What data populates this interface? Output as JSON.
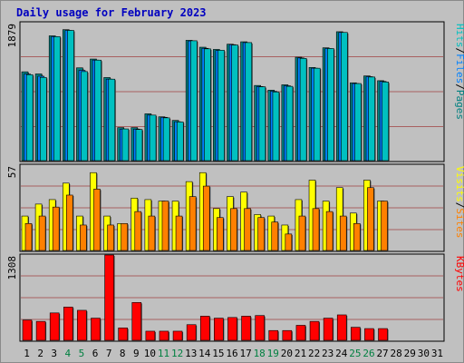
{
  "title": "Daily usage for February 2023",
  "colors": {
    "pages": "#008080",
    "files": "#0080ff",
    "hits": "#00c0c0",
    "visits": "#ffff00",
    "sites": "#ff8000",
    "kbytes": "#ff0000",
    "weekend_day": "#008040",
    "weekday": "#000000",
    "panel_bg": "#c0c0c0"
  },
  "chart_data": [
    {
      "type": "bar",
      "panel": "top",
      "ymax_label": "1879",
      "ylim": [
        0,
        1879
      ],
      "grid": true,
      "legend_labels": [
        "Pages",
        "Files",
        "Hits"
      ],
      "legend_separators": [
        "/",
        "/"
      ],
      "categories": [
        "1",
        "2",
        "3",
        "4",
        "5",
        "6",
        "7",
        "8",
        "9",
        "10",
        "11",
        "12",
        "13",
        "14",
        "15",
        "16",
        "17",
        "18",
        "19",
        "20",
        "21",
        "22",
        "23",
        "24",
        "25",
        "26",
        "27",
        "28",
        "29",
        "30",
        "31"
      ],
      "series": [
        {
          "name": "Pages",
          "values": [
            1210,
            1181,
            1700,
            1784,
            1264,
            1384,
            1132,
            450,
            450,
            638,
            597,
            548,
            1639,
            1545,
            1515,
            1586,
            1619,
            1024,
            960,
            1033,
            1409,
            1269,
            1537,
            1756,
            1060,
            1154,
            1089,
            0,
            0,
            0,
            0
          ]
        },
        {
          "name": "Files",
          "values": [
            1180,
            1150,
            1690,
            1774,
            1230,
            1370,
            1110,
            430,
            430,
            620,
            590,
            530,
            1630,
            1530,
            1500,
            1580,
            1608,
            1010,
            945,
            1020,
            1399,
            1259,
            1527,
            1746,
            1050,
            1144,
            1079,
            0,
            0,
            0,
            0
          ]
        },
        {
          "name": "Hits",
          "values": [
            1171,
            1134,
            1689,
            1774,
            1213,
            1369,
            1110,
            432,
            425,
            620,
            583,
            527,
            1633,
            1523,
            1503,
            1575,
            1608,
            1006,
            936,
            1012,
            1393,
            1259,
            1527,
            1746,
            1050,
            1139,
            1071,
            0,
            0,
            0,
            0
          ]
        }
      ]
    },
    {
      "type": "bar",
      "panel": "middle",
      "ymax_label": "57",
      "ylim": [
        0,
        57
      ],
      "grid": true,
      "legend_labels": [
        "Sites",
        "Visits"
      ],
      "legend_separators": [
        "/"
      ],
      "categories": [
        "1",
        "2",
        "3",
        "4",
        "5",
        "6",
        "7",
        "8",
        "9",
        "10",
        "11",
        "12",
        "13",
        "14",
        "15",
        "16",
        "17",
        "18",
        "19",
        "20",
        "21",
        "22",
        "23",
        "24",
        "25",
        "26",
        "27",
        "28",
        "29",
        "30",
        "31"
      ],
      "series": [
        {
          "name": "Visits",
          "values": [
            23,
            31,
            34,
            45,
            23,
            52,
            23,
            18,
            35,
            34,
            33,
            33,
            46,
            52,
            28,
            36,
            39,
            24,
            23,
            17,
            34,
            47,
            33,
            42,
            25,
            47,
            33,
            0,
            0,
            0,
            0
          ]
        },
        {
          "name": "Sites",
          "values": [
            18,
            23,
            29,
            37,
            17,
            41,
            17,
            18,
            26,
            23,
            33,
            23,
            36,
            43,
            22,
            28,
            28,
            22,
            19,
            11,
            23,
            28,
            26,
            23,
            18,
            42,
            33,
            0,
            0,
            0,
            0
          ]
        }
      ]
    },
    {
      "type": "bar",
      "panel": "bottom",
      "ymax_label": "1308",
      "ylim": [
        0,
        1308
      ],
      "grid": true,
      "legend_labels": [
        "KBytes"
      ],
      "categories": [
        "1",
        "2",
        "3",
        "4",
        "5",
        "6",
        "7",
        "8",
        "9",
        "10",
        "11",
        "12",
        "13",
        "14",
        "15",
        "16",
        "17",
        "18",
        "19",
        "20",
        "21",
        "22",
        "23",
        "24",
        "25",
        "26",
        "27",
        "28",
        "29",
        "30",
        "31"
      ],
      "series": [
        {
          "name": "KBytes",
          "values": [
            310,
            290,
            420,
            510,
            460,
            340,
            1308,
            190,
            580,
            140,
            140,
            140,
            240,
            370,
            340,
            350,
            370,
            380,
            150,
            150,
            230,
            290,
            340,
            390,
            200,
            180,
            180,
            0,
            0,
            0,
            0
          ]
        }
      ]
    }
  ]
}
